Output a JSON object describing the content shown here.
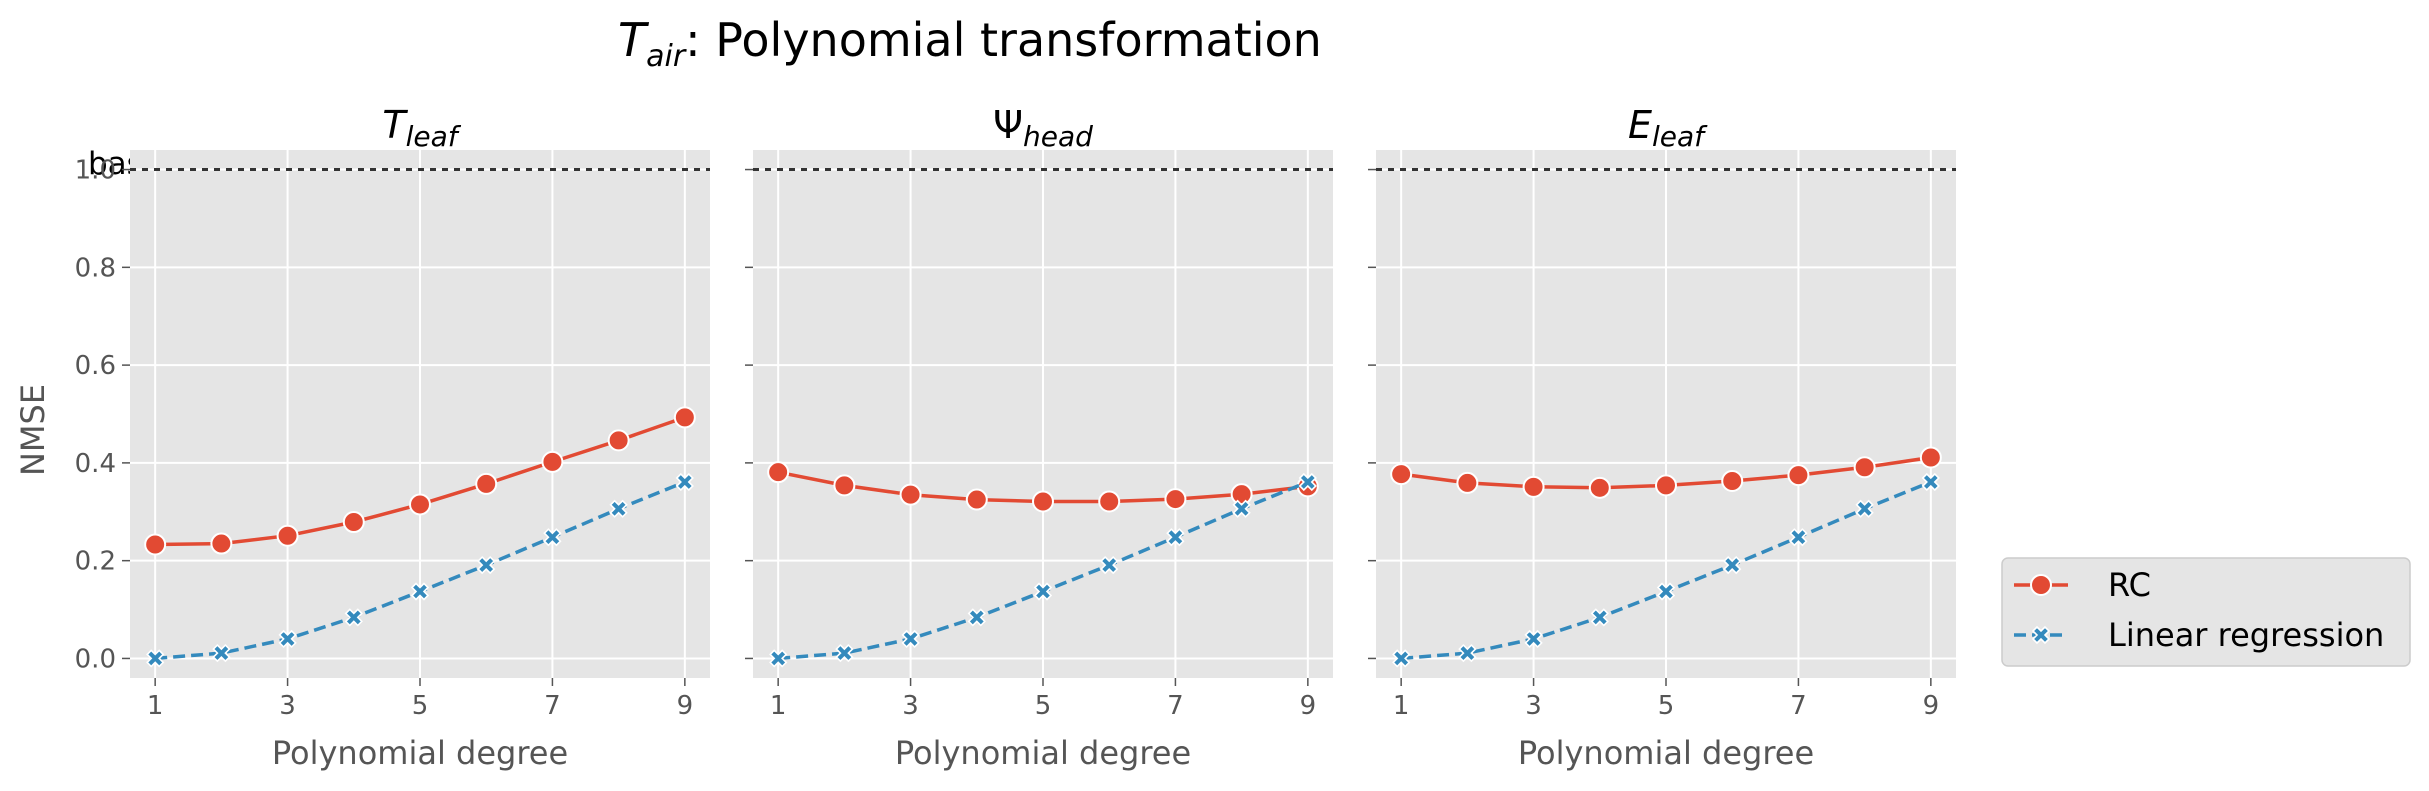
{
  "title_main": "T",
  "title_sub": "air",
  "title_rest": ": Polynomial transformation",
  "baseline_label": "baseline",
  "xlabel": "Polynomial degree",
  "ylabel": "NMSE",
  "legend": [
    "RC",
    "Linear regression"
  ],
  "colors": {
    "rc": "#E24A33",
    "lr": "#348ABD",
    "panel_bg": "#E5E5E5",
    "grid": "#FFFFFF",
    "baseline": "#333333"
  },
  "chart_data": [
    {
      "type": "line",
      "title_main": "T",
      "title_sub": "leaf",
      "x": [
        1,
        2,
        3,
        4,
        5,
        6,
        7,
        8,
        9
      ],
      "xticks": [
        1,
        3,
        5,
        7,
        9
      ],
      "yticks": [
        "0.0",
        "0.2",
        "0.4",
        "0.6",
        "0.8",
        "1.0"
      ],
      "ylim": [
        -0.04,
        1.04
      ],
      "baseline": 1.0,
      "series": [
        {
          "name": "RC",
          "values": [
            0.233,
            0.235,
            0.251,
            0.279,
            0.315,
            0.357,
            0.402,
            0.446,
            0.493
          ]
        },
        {
          "name": "Linear regression",
          "values": [
            0.0,
            0.011,
            0.04,
            0.084,
            0.137,
            0.191,
            0.248,
            0.306,
            0.361
          ]
        }
      ]
    },
    {
      "type": "line",
      "title_main": "Ψ",
      "title_sub": "head",
      "x": [
        1,
        2,
        3,
        4,
        5,
        6,
        7,
        8,
        9
      ],
      "xticks": [
        1,
        3,
        5,
        7,
        9
      ],
      "yticks": [
        "0.0",
        "0.2",
        "0.4",
        "0.6",
        "0.8",
        "1.0"
      ],
      "ylim": [
        -0.04,
        1.04
      ],
      "baseline": 1.0,
      "series": [
        {
          "name": "RC",
          "values": [
            0.381,
            0.354,
            0.335,
            0.325,
            0.321,
            0.321,
            0.326,
            0.336,
            0.352
          ]
        },
        {
          "name": "Linear regression",
          "values": [
            0.0,
            0.011,
            0.04,
            0.084,
            0.137,
            0.191,
            0.248,
            0.306,
            0.361
          ]
        }
      ]
    },
    {
      "type": "line",
      "title_main": "E",
      "title_sub": "leaf",
      "x": [
        1,
        2,
        3,
        4,
        5,
        6,
        7,
        8,
        9
      ],
      "xticks": [
        1,
        3,
        5,
        7,
        9
      ],
      "yticks": [
        "0.0",
        "0.2",
        "0.4",
        "0.6",
        "0.8",
        "1.0"
      ],
      "ylim": [
        -0.04,
        1.04
      ],
      "baseline": 1.0,
      "series": [
        {
          "name": "RC",
          "values": [
            0.377,
            0.359,
            0.351,
            0.349,
            0.354,
            0.363,
            0.375,
            0.391,
            0.411
          ]
        },
        {
          "name": "Linear regression",
          "values": [
            0.0,
            0.011,
            0.04,
            0.084,
            0.137,
            0.191,
            0.248,
            0.306,
            0.361
          ]
        }
      ]
    }
  ]
}
